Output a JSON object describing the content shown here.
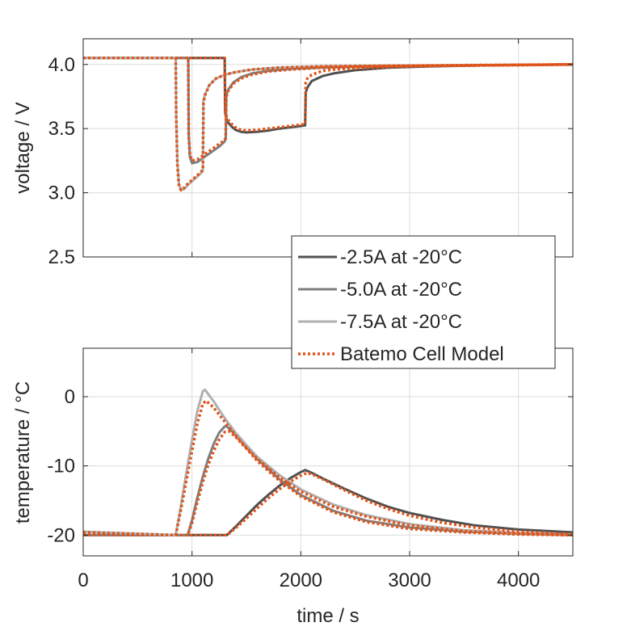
{
  "chart_data": [
    {
      "type": "line",
      "ylabel": "voltage / V",
      "xlim": [
        0,
        4500
      ],
      "ylim": [
        2.5,
        4.2
      ],
      "yticks": [
        2.5,
        3.0,
        3.5,
        4.0
      ],
      "ytick_labels": [
        "2.5",
        "3.0",
        "3.5",
        "4.0"
      ],
      "grid": true,
      "series": [
        {
          "name": "-2.5A at -20°C",
          "color": "#505050",
          "style": "solid",
          "x": [
            0,
            1300,
            1305,
            1320,
            1360,
            1400,
            1450,
            1500,
            1600,
            1700,
            1800,
            1900,
            2000,
            2040,
            2045,
            2060,
            2100,
            2200,
            2300,
            2500,
            2800,
            3200,
            3800,
            4500
          ],
          "y": [
            4.05,
            4.05,
            3.62,
            3.56,
            3.52,
            3.49,
            3.475,
            3.47,
            3.475,
            3.485,
            3.5,
            3.51,
            3.52,
            3.525,
            3.78,
            3.82,
            3.87,
            3.91,
            3.93,
            3.955,
            3.975,
            3.985,
            3.995,
            4.0
          ]
        },
        {
          "name": "-5.0A at -20°C",
          "color": "#7f7f7f",
          "style": "solid",
          "x": [
            0,
            965,
            970,
            980,
            1000,
            1050,
            1100,
            1150,
            1200,
            1250,
            1300,
            1310,
            1315,
            1330,
            1380,
            1450,
            1550,
            1700,
            1900,
            2200,
            2700,
            3300,
            4000,
            4500
          ],
          "y": [
            4.05,
            4.05,
            3.45,
            3.28,
            3.23,
            3.24,
            3.27,
            3.3,
            3.33,
            3.36,
            3.4,
            3.42,
            3.76,
            3.8,
            3.86,
            3.9,
            3.93,
            3.95,
            3.965,
            3.975,
            3.985,
            3.99,
            3.995,
            4.0
          ]
        },
        {
          "name": "-7.5A at -20°C",
          "color": "#b0b0b0",
          "style": "solid",
          "x": [
            0,
            850,
            855,
            865,
            880,
            900,
            930,
            960,
            1000,
            1040,
            1080,
            1100,
            1105,
            1120,
            1160,
            1220,
            1300,
            1400,
            1550,
            1800,
            2200,
            2800,
            3600,
            4500
          ],
          "y": [
            4.05,
            4.05,
            3.6,
            3.25,
            3.07,
            3.02,
            3.03,
            3.06,
            3.09,
            3.12,
            3.15,
            3.17,
            3.72,
            3.77,
            3.84,
            3.89,
            3.92,
            3.94,
            3.96,
            3.975,
            3.985,
            3.99,
            3.995,
            4.0
          ]
        },
        {
          "name": "Batemo Cell Model",
          "color": "#e0541a",
          "style": "dotted",
          "x": [
            0,
            850,
            855,
            865,
            880,
            900,
            930,
            960,
            1000,
            1040,
            1080,
            1100,
            1105,
            1120,
            1160,
            1220,
            1300,
            1400,
            1550,
            1800,
            2200,
            2800,
            3600,
            4500
          ],
          "y": [
            4.05,
            4.05,
            3.6,
            3.22,
            3.05,
            3.02,
            3.04,
            3.07,
            3.1,
            3.13,
            3.16,
            3.18,
            3.7,
            3.76,
            3.84,
            3.89,
            3.92,
            3.94,
            3.96,
            3.975,
            3.985,
            3.99,
            3.995,
            4.0
          ]
        },
        {
          "name": "Batemo Cell Model",
          "color": "#e0541a",
          "style": "dotted",
          "x": [
            0,
            965,
            970,
            980,
            1000,
            1050,
            1100,
            1150,
            1200,
            1250,
            1300,
            1310,
            1315,
            1330,
            1380,
            1450,
            1550,
            1700,
            1900,
            2200,
            2700,
            3300,
            4000,
            4500
          ],
          "y": [
            4.05,
            4.05,
            3.45,
            3.3,
            3.25,
            3.26,
            3.29,
            3.32,
            3.35,
            3.38,
            3.41,
            3.43,
            3.75,
            3.79,
            3.85,
            3.89,
            3.92,
            3.945,
            3.96,
            3.975,
            3.985,
            3.99,
            3.995,
            4.0
          ]
        },
        {
          "name": "Batemo Cell Model",
          "color": "#e0541a",
          "style": "dotted",
          "x": [
            0,
            1300,
            1305,
            1320,
            1360,
            1400,
            1450,
            1500,
            1600,
            1700,
            1800,
            1900,
            2000,
            2040,
            2045,
            2060,
            2100,
            2200,
            2300,
            2500,
            2800,
            3200,
            3800,
            4500
          ],
          "y": [
            4.05,
            4.05,
            3.64,
            3.58,
            3.54,
            3.51,
            3.49,
            3.485,
            3.49,
            3.5,
            3.51,
            3.52,
            3.53,
            3.535,
            3.86,
            3.89,
            3.92,
            3.95,
            3.96,
            3.97,
            3.98,
            3.99,
            3.995,
            4.0
          ]
        }
      ]
    },
    {
      "type": "line",
      "xlabel": "time / s",
      "ylabel": "temperature / °C",
      "xlim": [
        0,
        4500
      ],
      "ylim": [
        -23,
        7
      ],
      "xticks": [
        0,
        1000,
        2000,
        3000,
        4000
      ],
      "xtick_labels": [
        "0",
        "1000",
        "2000",
        "3000",
        "4000"
      ],
      "yticks": [
        -20,
        -10,
        0
      ],
      "ytick_labels": [
        "-20",
        "-10",
        "0"
      ],
      "grid": true,
      "series": [
        {
          "name": "-2.5A at -20°C",
          "color": "#505050",
          "style": "solid",
          "x": [
            0,
            1320,
            1400,
            1500,
            1600,
            1700,
            1800,
            1900,
            2000,
            2040,
            2100,
            2200,
            2400,
            2600,
            2800,
            3000,
            3300,
            3600,
            4000,
            4500
          ],
          "y": [
            -20,
            -20,
            -18.8,
            -17.2,
            -15.6,
            -14.2,
            -12.9,
            -11.8,
            -10.9,
            -10.6,
            -11,
            -11.8,
            -13.3,
            -14.7,
            -15.9,
            -16.8,
            -17.8,
            -18.6,
            -19.2,
            -19.6
          ]
        },
        {
          "name": "-5.0A at -20°C",
          "color": "#7f7f7f",
          "style": "solid",
          "x": [
            0,
            960,
            1000,
            1050,
            1100,
            1150,
            1200,
            1250,
            1300,
            1320,
            1400,
            1500,
            1600,
            1800,
            2000,
            2300,
            2600,
            3000,
            3500,
            4000,
            4500
          ],
          "y": [
            -20,
            -20,
            -17.8,
            -14.5,
            -11.5,
            -8.9,
            -6.8,
            -5.2,
            -4.3,
            -4.3,
            -5.5,
            -7.2,
            -9,
            -11.9,
            -14.2,
            -16.5,
            -17.9,
            -18.9,
            -19.5,
            -19.8,
            -20
          ]
        },
        {
          "name": "-7.5A at -20°C",
          "color": "#b0b0b0",
          "style": "solid",
          "x": [
            0,
            850,
            900,
            950,
            1000,
            1050,
            1100,
            1120,
            1200,
            1300,
            1400,
            1500,
            1600,
            1800,
            2000,
            2300,
            2600,
            3000,
            3500,
            4000,
            4500
          ],
          "y": [
            -19.5,
            -20,
            -15.5,
            -10.8,
            -6.2,
            -2,
            0.8,
            1,
            -0.7,
            -3.1,
            -5.2,
            -7,
            -8.7,
            -11.3,
            -13.4,
            -15.6,
            -17.1,
            -18.4,
            -19.3,
            -19.7,
            -19.9
          ]
        },
        {
          "name": "Batemo Cell Model",
          "color": "#e0541a",
          "style": "dotted",
          "x": [
            0,
            850,
            900,
            950,
            1000,
            1050,
            1100,
            1130,
            1200,
            1300,
            1400,
            1500,
            1600,
            1800,
            2000,
            2300,
            2600,
            3000,
            3500,
            4000,
            4500
          ],
          "y": [
            -19.6,
            -20,
            -16.2,
            -12,
            -7.8,
            -3.8,
            -1,
            -0.6,
            -1.6,
            -3.6,
            -5.6,
            -7.4,
            -9,
            -11.6,
            -13.7,
            -15.9,
            -17.3,
            -18.6,
            -19.4,
            -19.8,
            -20
          ]
        },
        {
          "name": "Batemo Cell Model",
          "color": "#e0541a",
          "style": "dotted",
          "x": [
            0,
            960,
            1000,
            1050,
            1100,
            1150,
            1200,
            1250,
            1300,
            1340,
            1400,
            1500,
            1600,
            1800,
            2000,
            2300,
            2600,
            3000,
            3500,
            4000,
            4500
          ],
          "y": [
            -20,
            -20,
            -18.2,
            -15.2,
            -12.3,
            -9.8,
            -7.8,
            -6.2,
            -5.1,
            -5,
            -5.8,
            -7.5,
            -9.3,
            -12.1,
            -14.4,
            -16.7,
            -18.1,
            -19.1,
            -19.6,
            -19.9,
            -20
          ]
        },
        {
          "name": "Batemo Cell Model",
          "color": "#e0541a",
          "style": "dotted",
          "x": [
            0,
            1320,
            1400,
            1500,
            1600,
            1700,
            1800,
            1900,
            2000,
            2060,
            2100,
            2200,
            2400,
            2600,
            2800,
            3000,
            3300,
            3600,
            4000,
            4500
          ],
          "y": [
            -20,
            -20,
            -19,
            -17.6,
            -16.1,
            -14.7,
            -13.4,
            -12.3,
            -11.4,
            -11,
            -11.2,
            -11.9,
            -13.5,
            -15,
            -16.2,
            -17.2,
            -18.2,
            -18.9,
            -19.5,
            -19.9
          ]
        }
      ]
    }
  ],
  "legend": {
    "placement": "between-panels-right",
    "items": [
      {
        "label": "-2.5A at -20°C",
        "color": "#505050",
        "style": "solid"
      },
      {
        "label": "-5.0A at -20°C",
        "color": "#7f7f7f",
        "style": "solid"
      },
      {
        "label": "-7.5A at -20°C",
        "color": "#b0b0b0",
        "style": "solid"
      },
      {
        "label": "Batemo Cell Model",
        "color": "#e0541a",
        "style": "dotted"
      }
    ]
  }
}
